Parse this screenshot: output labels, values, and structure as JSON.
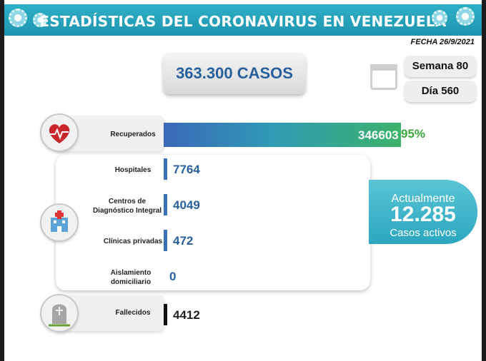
{
  "header": {
    "title": "ESTADÍSTICAS DEL CORONAVIRUS EN VENEZUELA"
  },
  "fecha": "FECHA 26/9/2021",
  "total_cases": "363.300 CASOS",
  "semana": "Semana 80",
  "dia": "Día 560",
  "active": {
    "line1": "Actualmente",
    "number": "12.285",
    "line2": "Casos activos"
  },
  "colors": {
    "accent": "#1e94b0",
    "value_text": "#27609c",
    "recovered_pct": "#3aa83a",
    "deaths_bar": "#111111",
    "bar_blue": "#3b6fb6"
  },
  "icons": {
    "recovered": "heart-pulse-icon",
    "hospital": "hospital-icon",
    "deaths": "tombstone-icon",
    "calendar": "calendar-icon"
  },
  "chart_data": {
    "type": "bar",
    "categories": [
      "Recuperados",
      "Hospitales",
      "Centros de Diagnóstico Integral",
      "Clínicas privadas",
      "Aislamiento domiciliario",
      "Fallecidos"
    ],
    "values": [
      346603,
      7764,
      4049,
      472,
      0,
      4412
    ],
    "value_labels": [
      "346603",
      "7764",
      "4049",
      "472",
      "0",
      "4412"
    ],
    "recovered_percent": "95%",
    "title": "",
    "xlabel": "",
    "ylabel": ""
  }
}
